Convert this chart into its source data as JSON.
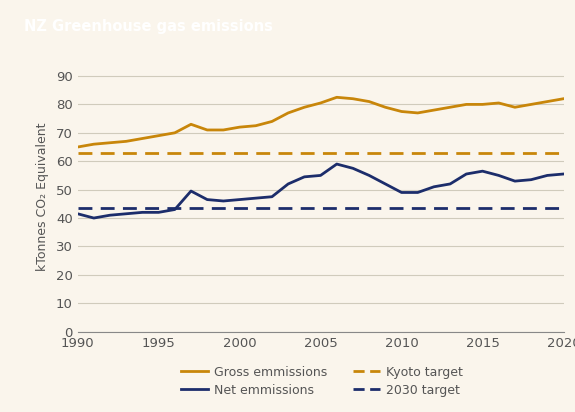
{
  "title": "NZ Greenhouse gas emissions",
  "title_bg_color": "#A0720A",
  "title_text_color": "#ffffff",
  "bg_color": "#FAF5EC",
  "plot_bg_color": "#FAF5EC",
  "ylabel": "kTonnes CO₂ Equivalent",
  "ylim": [
    0,
    95
  ],
  "yticks": [
    0,
    10,
    20,
    30,
    40,
    50,
    60,
    70,
    80,
    90
  ],
  "xlim": [
    1990,
    2020
  ],
  "xticks": [
    1990,
    1995,
    2000,
    2005,
    2010,
    2015,
    2020
  ],
  "gross_color": "#C8860A",
  "net_color": "#1C2D6B",
  "kyoto_color": "#C8860A",
  "target2030_color": "#1C2D6B",
  "kyoto_value": 63,
  "target2030_value": 43.5,
  "gross_emissions": {
    "years": [
      1990,
      1991,
      1992,
      1993,
      1994,
      1995,
      1996,
      1997,
      1998,
      1999,
      2000,
      2001,
      2002,
      2003,
      2004,
      2005,
      2006,
      2007,
      2008,
      2009,
      2010,
      2011,
      2012,
      2013,
      2014,
      2015,
      2016,
      2017,
      2018,
      2019,
      2020
    ],
    "values": [
      65,
      66,
      66.5,
      67,
      68,
      69,
      70,
      73,
      71,
      71,
      72,
      72.5,
      74,
      77,
      79,
      80.5,
      82.5,
      82,
      81,
      79,
      77.5,
      77,
      78,
      79,
      80,
      80,
      80.5,
      79,
      80,
      81,
      82
    ]
  },
  "net_emissions": {
    "years": [
      1990,
      1991,
      1992,
      1993,
      1994,
      1995,
      1996,
      1997,
      1998,
      1999,
      2000,
      2001,
      2002,
      2003,
      2004,
      2005,
      2006,
      2007,
      2008,
      2009,
      2010,
      2011,
      2012,
      2013,
      2014,
      2015,
      2016,
      2017,
      2018,
      2019,
      2020
    ],
    "values": [
      41.5,
      40,
      41,
      41.5,
      42,
      42,
      43,
      49.5,
      46.5,
      46,
      46.5,
      47,
      47.5,
      52,
      54.5,
      55,
      59,
      57.5,
      55,
      52,
      49,
      49,
      51,
      52,
      55.5,
      56.5,
      55,
      53,
      53.5,
      55,
      55.5
    ]
  },
  "legend_entries": [
    {
      "label": "Gross emmissions",
      "color": "#C8860A",
      "linestyle": "solid"
    },
    {
      "label": "Net emmissions",
      "color": "#1C2D6B",
      "linestyle": "solid"
    },
    {
      "label": "Kyoto target",
      "color": "#C8860A",
      "linestyle": "dashed"
    },
    {
      "label": "2030 target",
      "color": "#1C2D6B",
      "linestyle": "dashed"
    }
  ],
  "grid_color": "#D0CBBC",
  "tick_color": "#555555",
  "font_size": 9.5,
  "axis_label_fontsize": 9
}
